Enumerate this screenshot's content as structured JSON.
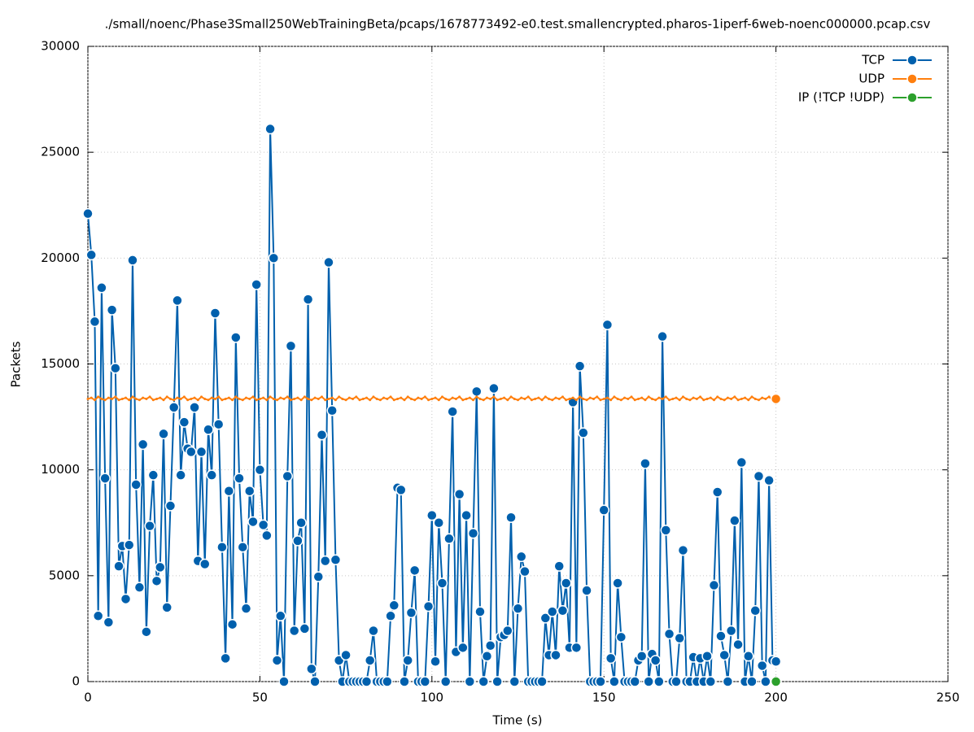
{
  "chart_data": {
    "type": "line",
    "title": "./small/noenc/Phase3Small250WebTrainingBeta/pcaps/1678773492-e0.test.smallencrypted.pharos-1iperf-6web-noenc000000.pcap.csv",
    "x_label": "Time (s)",
    "y_label": "Packets",
    "xlim": [
      0,
      250
    ],
    "xticks": [
      0,
      50,
      100,
      150,
      200,
      250
    ],
    "ylim": [
      0,
      30000
    ],
    "yticks": [
      0,
      5000,
      10000,
      15000,
      20000,
      25000,
      30000
    ],
    "grid": true,
    "legend": "top-right",
    "series": [
      {
        "name": "TCP",
        "color": "#0060ad",
        "x": [
          0,
          1,
          2,
          3,
          4,
          5,
          6,
          7,
          8,
          9,
          10,
          11,
          12,
          13,
          14,
          15,
          16,
          17,
          18,
          19,
          20,
          21,
          22,
          23,
          24,
          25,
          26,
          27,
          28,
          29,
          30,
          31,
          32,
          33,
          34,
          35,
          36,
          37,
          38,
          39,
          40,
          41,
          42,
          43,
          44,
          45,
          46,
          47,
          48,
          49,
          50,
          51,
          52,
          53,
          54,
          55,
          56,
          57,
          58,
          59,
          60,
          61,
          62,
          63,
          64,
          65,
          66,
          67,
          68,
          69,
          70,
          71,
          72,
          73,
          74,
          75,
          76,
          77,
          78,
          79,
          80,
          81,
          82,
          83,
          84,
          85,
          86,
          87,
          88,
          89,
          90,
          91,
          92,
          93,
          94,
          95,
          96,
          97,
          98,
          99,
          100,
          101,
          102,
          103,
          104,
          105,
          106,
          107,
          108,
          109,
          110,
          111,
          112,
          113,
          114,
          115,
          116,
          117,
          118,
          119,
          120,
          121,
          122,
          123,
          124,
          125,
          126,
          127,
          128,
          129,
          130,
          131,
          132,
          133,
          134,
          135,
          136,
          137,
          138,
          139,
          140,
          141,
          142,
          143,
          144,
          145,
          146,
          147,
          148,
          149,
          150,
          151,
          152,
          153,
          154,
          155,
          156,
          157,
          158,
          159,
          160,
          161,
          162,
          163,
          164,
          165,
          166,
          167,
          168,
          169,
          170,
          171,
          172,
          173,
          174,
          175,
          176,
          177,
          178,
          179,
          180,
          181,
          182,
          183,
          184,
          185,
          186,
          187,
          188,
          189,
          190,
          191,
          192,
          193,
          194,
          195,
          196,
          197,
          198,
          199,
          200
        ],
        "values": [
          22100,
          20150,
          17000,
          3100,
          18600,
          9600,
          2800,
          17550,
          14800,
          5450,
          6400,
          3900,
          6450,
          19900,
          9300,
          4450,
          11200,
          2350,
          7350,
          9750,
          4750,
          5400,
          11700,
          3500,
          8300,
          12950,
          18000,
          9750,
          12250,
          11000,
          10850,
          12950,
          5700,
          10850,
          5550,
          11900,
          9750,
          17400,
          12150,
          6350,
          1100,
          9000,
          2700,
          16250,
          9600,
          6350,
          3450,
          9000,
          7550,
          18750,
          10000,
          7400,
          6900,
          26100,
          20000,
          1000,
          3100,
          0,
          9700,
          15850,
          2400,
          6650,
          7500,
          2500,
          18050,
          600,
          0,
          4950,
          11650,
          5700,
          19800,
          12800,
          5750,
          1000,
          0,
          1250,
          0,
          0,
          0,
          0,
          0,
          0,
          1000,
          2400,
          0,
          0,
          0,
          0,
          3100,
          3600,
          9150,
          9050,
          0,
          1000,
          3250,
          5250,
          0,
          0,
          0,
          3550,
          7850,
          950,
          7500,
          4650,
          0,
          6750,
          12750,
          1400,
          8850,
          1600,
          7850,
          0,
          7000,
          13700,
          3300,
          0,
          1200,
          1700,
          13850,
          0,
          2100,
          2200,
          2400,
          7750,
          0,
          3450,
          5900,
          5200,
          0,
          0,
          0,
          0,
          0,
          3000,
          1250,
          3300,
          1250,
          5450,
          3350,
          4650,
          1600,
          13200,
          1600,
          14900,
          11750,
          4300,
          0,
          0,
          0,
          0,
          8100,
          16850,
          1100,
          0,
          4650,
          2100,
          0,
          0,
          0,
          0,
          1000,
          1200,
          10300,
          0,
          1300,
          1000,
          0,
          16300,
          7150,
          2250,
          0,
          0,
          2050,
          6200,
          0,
          0,
          1150,
          0,
          1100,
          0,
          1200,
          0,
          4550,
          8950,
          2150,
          1250,
          0,
          2400,
          7600,
          1750,
          10350,
          0,
          1200,
          0,
          3350,
          9700,
          750,
          0,
          9500,
          1000,
          950
        ]
      },
      {
        "name": "UDP",
        "color": "#ff7f0e",
        "x": [
          0,
          1,
          2,
          3,
          4,
          5,
          6,
          7,
          8,
          9,
          10,
          11,
          12,
          13,
          14,
          15,
          16,
          17,
          18,
          19,
          20,
          21,
          22,
          23,
          24,
          25,
          26,
          27,
          28,
          29,
          30,
          31,
          32,
          33,
          34,
          35,
          36,
          37,
          38,
          39,
          40,
          41,
          42,
          43,
          44,
          45,
          46,
          47,
          48,
          49,
          50,
          51,
          52,
          53,
          54,
          55,
          56,
          57,
          58,
          59,
          60,
          61,
          62,
          63,
          64,
          65,
          66,
          67,
          68,
          69,
          70,
          71,
          72,
          73,
          74,
          75,
          76,
          77,
          78,
          79,
          80,
          81,
          82,
          83,
          84,
          85,
          86,
          87,
          88,
          89,
          90,
          91,
          92,
          93,
          94,
          95,
          96,
          97,
          98,
          99,
          100,
          101,
          102,
          103,
          104,
          105,
          106,
          107,
          108,
          109,
          110,
          111,
          112,
          113,
          114,
          115,
          116,
          117,
          118,
          119,
          120,
          121,
          122,
          123,
          124,
          125,
          126,
          127,
          128,
          129,
          130,
          131,
          132,
          133,
          134,
          135,
          136,
          137,
          138,
          139,
          140,
          141,
          142,
          143,
          144,
          145,
          146,
          147,
          148,
          149,
          150,
          151,
          152,
          153,
          154,
          155,
          156,
          157,
          158,
          159,
          160,
          161,
          162,
          163,
          164,
          165,
          166,
          167,
          168,
          169,
          170,
          171,
          172,
          173,
          174,
          175,
          176,
          177,
          178,
          179,
          180,
          181,
          182,
          183,
          184,
          185,
          186,
          187,
          188,
          189,
          190,
          191,
          192,
          193,
          194,
          195,
          196,
          197,
          198,
          199,
          200
        ],
        "values": [
          13350,
          13400,
          13300,
          13450,
          13350,
          13300,
          13400,
          13350,
          13450,
          13300,
          13350,
          13400,
          13300,
          13450,
          13350,
          13300,
          13400,
          13350,
          13450,
          13300,
          13350,
          13400,
          13300,
          13450,
          13350,
          13300,
          13400,
          13350,
          13450,
          13300,
          13350,
          13400,
          13300,
          13450,
          13350,
          13300,
          13400,
          13350,
          13450,
          13300,
          13350,
          13400,
          13300,
          13450,
          13350,
          13300,
          13400,
          13350,
          13450,
          13300,
          13350,
          13400,
          13300,
          13450,
          13350,
          13300,
          13400,
          13350,
          13450,
          13300,
          13350,
          13400,
          13300,
          13450,
          13350,
          13300,
          13400,
          13350,
          13450,
          13300,
          13350,
          13400,
          13300,
          13450,
          13350,
          13300,
          13400,
          13350,
          13450,
          13300,
          13350,
          13400,
          13300,
          13450,
          13350,
          13300,
          13400,
          13350,
          13450,
          13300,
          13350,
          13400,
          13300,
          13450,
          13350,
          13300,
          13400,
          13350,
          13450,
          13300,
          13350,
          13400,
          13300,
          13450,
          13350,
          13300,
          13400,
          13350,
          13450,
          13300,
          13350,
          13400,
          13300,
          13450,
          13350,
          13300,
          13400,
          13350,
          13450,
          13300,
          13350,
          13400,
          13300,
          13450,
          13350,
          13300,
          13400,
          13350,
          13450,
          13300,
          13350,
          13400,
          13300,
          13450,
          13350,
          13300,
          13400,
          13350,
          13450,
          13300,
          13350,
          13400,
          13300,
          13450,
          13350,
          13300,
          13400,
          13350,
          13450,
          13300,
          13350,
          13400,
          13300,
          13450,
          13350,
          13300,
          13400,
          13350,
          13450,
          13300,
          13350,
          13400,
          13300,
          13450,
          13350,
          13300,
          13400,
          13350,
          13450,
          13300,
          13350,
          13400,
          13300,
          13450,
          13350,
          13300,
          13400,
          13350,
          13450,
          13300,
          13350,
          13400,
          13300,
          13450,
          13350,
          13300,
          13400,
          13350,
          13450,
          13300,
          13350,
          13400,
          13300,
          13450,
          13350,
          13300,
          13400,
          13350,
          13450,
          13300,
          13350
        ]
      },
      {
        "name": "IP (!TCP  !UDP)",
        "color": "#2ca02c",
        "x": [
          200
        ],
        "values": [
          0
        ]
      }
    ]
  }
}
